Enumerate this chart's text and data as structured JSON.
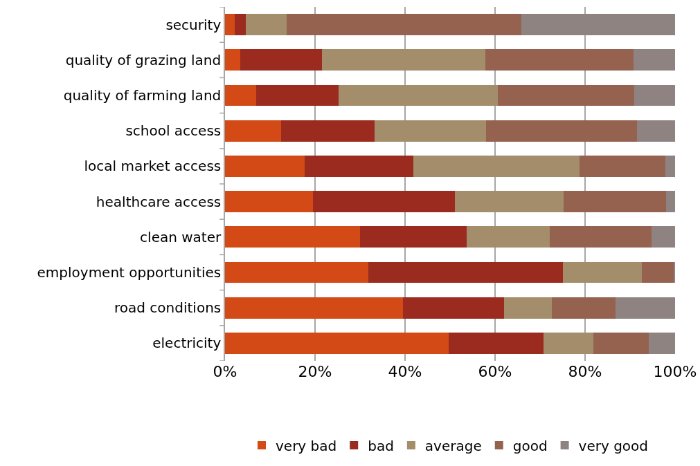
{
  "chart_data": {
    "type": "bar",
    "orientation": "horizontal",
    "stacked": true,
    "categories": [
      "security",
      "quality of grazing land",
      "quality of farming land",
      "school access",
      "local market access",
      "healthcare access",
      "clean water",
      "employment opportunities",
      "road conditions",
      "electricity"
    ],
    "series": [
      {
        "name": "very bad",
        "color": "#d34a17",
        "values": [
          2.2,
          3.4,
          6.9,
          12.5,
          17.7,
          19.5,
          30.0,
          31.8,
          39.6,
          49.7
        ]
      },
      {
        "name": "bad",
        "color": "#9c2b1f",
        "values": [
          2.4,
          18.1,
          18.3,
          20.7,
          24.1,
          31.5,
          23.7,
          43.2,
          22.4,
          21.1
        ]
      },
      {
        "name": "average",
        "color": "#a38d6b",
        "values": [
          9.1,
          36.3,
          35.4,
          24.8,
          36.9,
          24.3,
          18.4,
          17.6,
          10.6,
          11.0
        ]
      },
      {
        "name": "good",
        "color": "#956250",
        "values": [
          52.1,
          33.0,
          30.3,
          33.5,
          19.1,
          22.7,
          22.7,
          7.1,
          14.1,
          12.4
        ]
      },
      {
        "name": "very good",
        "color": "#8f8382",
        "values": [
          34.2,
          9.2,
          9.1,
          8.5,
          2.2,
          2.0,
          5.2,
          0.3,
          13.3,
          5.8
        ]
      }
    ],
    "xlim": [
      0,
      100
    ],
    "xticks": [
      {
        "value": 0,
        "label": "0%"
      },
      {
        "value": 20,
        "label": "20%"
      },
      {
        "value": 40,
        "label": "40%"
      },
      {
        "value": 60,
        "label": "60%"
      },
      {
        "value": 80,
        "label": "80%"
      },
      {
        "value": 100,
        "label": "100%"
      }
    ],
    "grid": "x",
    "legend": "bottom"
  }
}
